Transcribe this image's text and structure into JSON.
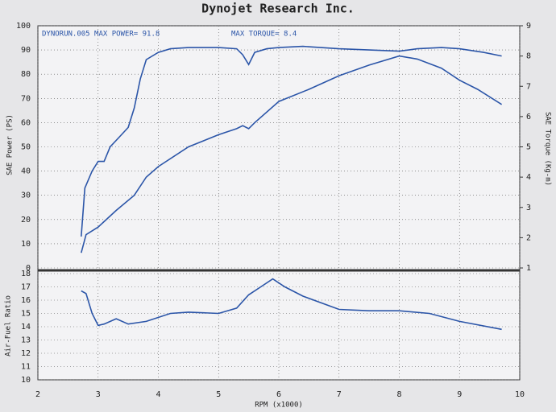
{
  "chart_data": [
    {
      "type": "line",
      "title": "Dynojet Research Inc.",
      "annotations": [
        "DYNORUN.005  MAX POWER= 91.8",
        "MAX TORQUE= 8.4"
      ],
      "ylabel": "SAE Power (PS)",
      "y2label": "SAE Torque (Kg-m)",
      "xlim": [
        2,
        10
      ],
      "xticks": [
        2,
        3,
        4,
        5,
        6,
        7,
        8,
        9,
        10
      ],
      "ylim": [
        0,
        100
      ],
      "yticks": [
        0,
        10,
        20,
        30,
        40,
        50,
        60,
        70,
        80,
        90,
        100
      ],
      "y2lim": [
        1,
        9
      ],
      "y2ticks": [
        1,
        2,
        3,
        4,
        5,
        6,
        7,
        8,
        9
      ],
      "grid": true,
      "series": [
        {
          "color": "#2b55a8",
          "x": [
            2.72,
            2.78,
            2.9,
            3.0,
            3.1,
            3.2,
            3.35,
            3.5,
            3.6,
            3.7,
            3.8,
            4.0,
            4.2,
            4.5,
            5.0,
            5.3,
            5.4,
            5.5,
            5.6,
            5.8,
            6.0,
            6.4,
            7.0,
            7.5,
            8.0,
            8.3,
            8.7,
            9.0,
            9.4,
            9.7
          ],
          "values": [
            13,
            33,
            40,
            44,
            44,
            50,
            54,
            58,
            66,
            78,
            86,
            89,
            90.5,
            91,
            91,
            90.5,
            88,
            84,
            89,
            90.5,
            91,
            91.5,
            90.5,
            90,
            89.5,
            90.5,
            91,
            90.5,
            89,
            87.5
          ]
        },
        {
          "color": "#2b55a8",
          "axis": "y2",
          "x": [
            2.72,
            2.8,
            3.0,
            3.3,
            3.6,
            3.8,
            4.0,
            4.5,
            5.0,
            5.3,
            5.4,
            5.5,
            5.6,
            6.0,
            6.5,
            7.0,
            7.5,
            8.0,
            8.3,
            8.7,
            9.0,
            9.3,
            9.7
          ],
          "values": [
            1.5,
            2.1,
            2.35,
            2.9,
            3.4,
            4.0,
            4.35,
            5.0,
            5.4,
            5.6,
            5.7,
            5.6,
            5.8,
            6.5,
            6.9,
            7.35,
            7.7,
            8.0,
            7.9,
            7.6,
            7.2,
            6.9,
            6.4
          ]
        }
      ]
    },
    {
      "type": "line",
      "ylabel": "Air-Fuel Ratio",
      "xlabel": "RPM (x1000)",
      "xlim": [
        2,
        10
      ],
      "xticks": [
        2,
        3,
        4,
        5,
        6,
        7,
        8,
        9,
        10
      ],
      "ylim": [
        10,
        18
      ],
      "yticks": [
        10,
        11,
        12,
        13,
        14,
        15,
        16,
        17,
        18
      ],
      "grid": true,
      "series": [
        {
          "color": "#2b55a8",
          "x": [
            2.72,
            2.8,
            2.9,
            3.0,
            3.1,
            3.3,
            3.5,
            3.8,
            4.2,
            4.5,
            5.0,
            5.3,
            5.5,
            5.7,
            5.9,
            6.1,
            6.4,
            7.0,
            7.5,
            8.0,
            8.5,
            9.0,
            9.7
          ],
          "values": [
            16.7,
            16.5,
            15,
            14.1,
            14.2,
            14.6,
            14.2,
            14.4,
            15,
            15.1,
            15,
            15.4,
            16.4,
            17,
            17.6,
            17,
            16.3,
            15.3,
            15.2,
            15.2,
            15,
            14.4,
            13.8
          ]
        }
      ]
    }
  ]
}
